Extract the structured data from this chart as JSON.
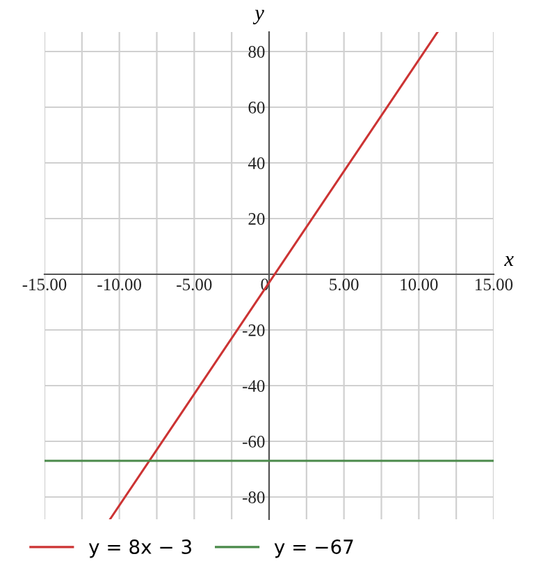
{
  "chart_data": {
    "type": "line",
    "xlabel": "x",
    "ylabel": "y",
    "xlim": [
      -15,
      15
    ],
    "ylim": [
      -88,
      87
    ],
    "xticks": [
      {
        "value": -15,
        "label": "-15.00"
      },
      {
        "value": -12.5,
        "label": null
      },
      {
        "value": -10,
        "label": "-10.00"
      },
      {
        "value": -7.5,
        "label": null
      },
      {
        "value": -5,
        "label": "-5.00"
      },
      {
        "value": -2.5,
        "label": null
      },
      {
        "value": 0,
        "label": "0"
      },
      {
        "value": 2.5,
        "label": null
      },
      {
        "value": 5,
        "label": "5.00"
      },
      {
        "value": 7.5,
        "label": null
      },
      {
        "value": 10,
        "label": "10.00"
      },
      {
        "value": 12.5,
        "label": null
      },
      {
        "value": 15,
        "label": "15.00"
      }
    ],
    "yticks": [
      -80,
      -60,
      -40,
      -20,
      {
        "value": 0,
        "label": null
      },
      20,
      40,
      60,
      80
    ],
    "grid": true,
    "legend": "bottom",
    "line_style": "solid",
    "series": [
      {
        "name": "y = 8x − 3",
        "color": "#cc3333",
        "x": [
          -10.625,
          11.25
        ],
        "values": [
          -88,
          87
        ]
      },
      {
        "name": "y = −67",
        "color": "#4a8a4a",
        "x": [
          -15,
          15
        ],
        "values": [
          -67,
          -67
        ]
      }
    ]
  }
}
